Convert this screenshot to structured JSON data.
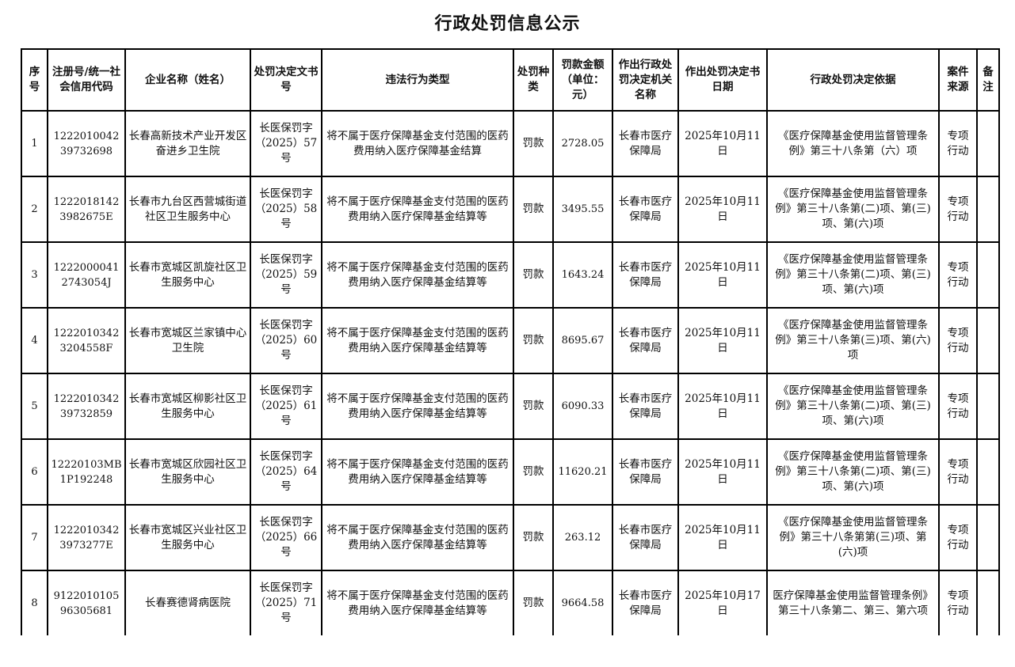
{
  "title": "行政处罚信息公示",
  "headers": [
    "序号",
    "注册号/统一社会信用代码",
    "企业名称（姓名）",
    "处罚决定文书号",
    "违法行为类型",
    "处罚种类",
    "罚款金额（单位：元）",
    "作出行政处罚决定机关名称",
    "作出处罚决定书日期",
    "行政处罚决定依据",
    "案件来源",
    "备注"
  ],
  "rows": [
    {
      "no": "1",
      "code": "122201004239732698",
      "name": "长春高新技术产业开发区奋进乡卫生院",
      "doc": "长医保罚字（2025）57号",
      "violation": "将不属于医疗保障基金支付范围的医药费用纳入医疗保障基金结算",
      "type": "罚款",
      "amount": "2728.05",
      "authority": "长春市医疗保障局",
      "date": "2025年10月11日",
      "basis": "《医疗保障基金使用监督管理条例》第三十八条第（六）项",
      "source": "专项行动",
      "note": ""
    },
    {
      "no": "2",
      "code": "12220181423982675E",
      "name": "长春市九台区西营城街道社区卫生服务中心",
      "doc": "长医保罚字（2025）58号",
      "violation": "将不属于医疗保障基金支付范围的医药费用纳入医疗保障基金结算等",
      "type": "罚款",
      "amount": "3495.55",
      "authority": "长春市医疗保障局",
      "date": "2025年10月11日",
      "basis": "《医疗保障基金使用监督管理条例》第三十八条第(二)项、第(三)项、第(六)项",
      "source": "专项行动",
      "note": ""
    },
    {
      "no": "3",
      "code": "12220000412743054J",
      "name": "长春市宽城区凯旋社区卫生服务中心",
      "doc": "长医保罚字（2025）59号",
      "violation": "将不属于医疗保障基金支付范围的医药费用纳入医疗保障基金结算等",
      "type": "罚款",
      "amount": "1643.24",
      "authority": "长春市医疗保障局",
      "date": "2025年10月11日",
      "basis": "《医疗保障基金使用监督管理条例》第三十八条第(二)项、第(三)项、第(六)项",
      "source": "专项行动",
      "note": ""
    },
    {
      "no": "4",
      "code": "12220103423204558F",
      "name": "长春市宽城区兰家镇中心卫生院",
      "doc": "长医保罚字（2025）60号",
      "violation": "将不属于医疗保障基金支付范围的医药费用纳入医疗保障基金结算等",
      "type": "罚款",
      "amount": "8695.67",
      "authority": "长春市医疗保障局",
      "date": "2025年10月11日",
      "basis": "《医疗保障基金使用监督管理条例》第三十八条第(三)项、第(六)项",
      "source": "专项行动",
      "note": ""
    },
    {
      "no": "5",
      "code": "122201034239732859",
      "name": "长春市宽城区柳影社区卫生服务中心",
      "doc": "长医保罚字（2025）61号",
      "violation": "将不属于医疗保障基金支付范围的医药费用纳入医疗保障基金结算等",
      "type": "罚款",
      "amount": "6090.33",
      "authority": "长春市医疗保障局",
      "date": "2025年10月11日",
      "basis": "《医疗保障基金使用监督管理条例》第三十八条第(二)项、第(三)项、第(六)项",
      "source": "专项行动",
      "note": ""
    },
    {
      "no": "6",
      "code": "12220103MB1P192248",
      "name": "长春市宽城区欣园社区卫生服务中心",
      "doc": "长医保罚字（2025）64号",
      "violation": "将不属于医疗保障基金支付范围的医药费用纳入医疗保障基金结算等",
      "type": "罚款",
      "amount": "11620.21",
      "authority": "长春市医疗保障局",
      "date": "2025年10月11日",
      "basis": "《医疗保障基金使用监督管理条例》第三十八条第(二)项、第(三)项、第(六)项",
      "source": "专项行动",
      "note": ""
    },
    {
      "no": "7",
      "code": "12220103423973277E",
      "name": "长春市宽城区兴业社区卫生服务中心",
      "doc": "长医保罚字（2025）66号",
      "violation": "将不属于医疗保障基金支付范围的医药费用纳入医疗保障基金结算等",
      "type": "罚款",
      "amount": "263.12",
      "authority": "长春市医疗保障局",
      "date": "2025年10月11日",
      "basis": "《医疗保障基金使用监督管理条例》第三十八条第第(三)项、第(六)项",
      "source": "专项行动",
      "note": ""
    },
    {
      "no": "8",
      "code": "912201010596305681",
      "name": "长春赛德肾病医院",
      "doc": "长医保罚字（2025）71号",
      "violation": "将不属于医疗保障基金支付范围的医药费用纳入医疗保障基金结算等",
      "type": "罚款",
      "amount": "9664.58",
      "authority": "长春市医疗保障局",
      "date": "2025年10月17日",
      "basis": "医疗保障基金使用监督管理条例》第三十八条第二、第三、第六项",
      "source": "专项行动",
      "note": ""
    }
  ]
}
